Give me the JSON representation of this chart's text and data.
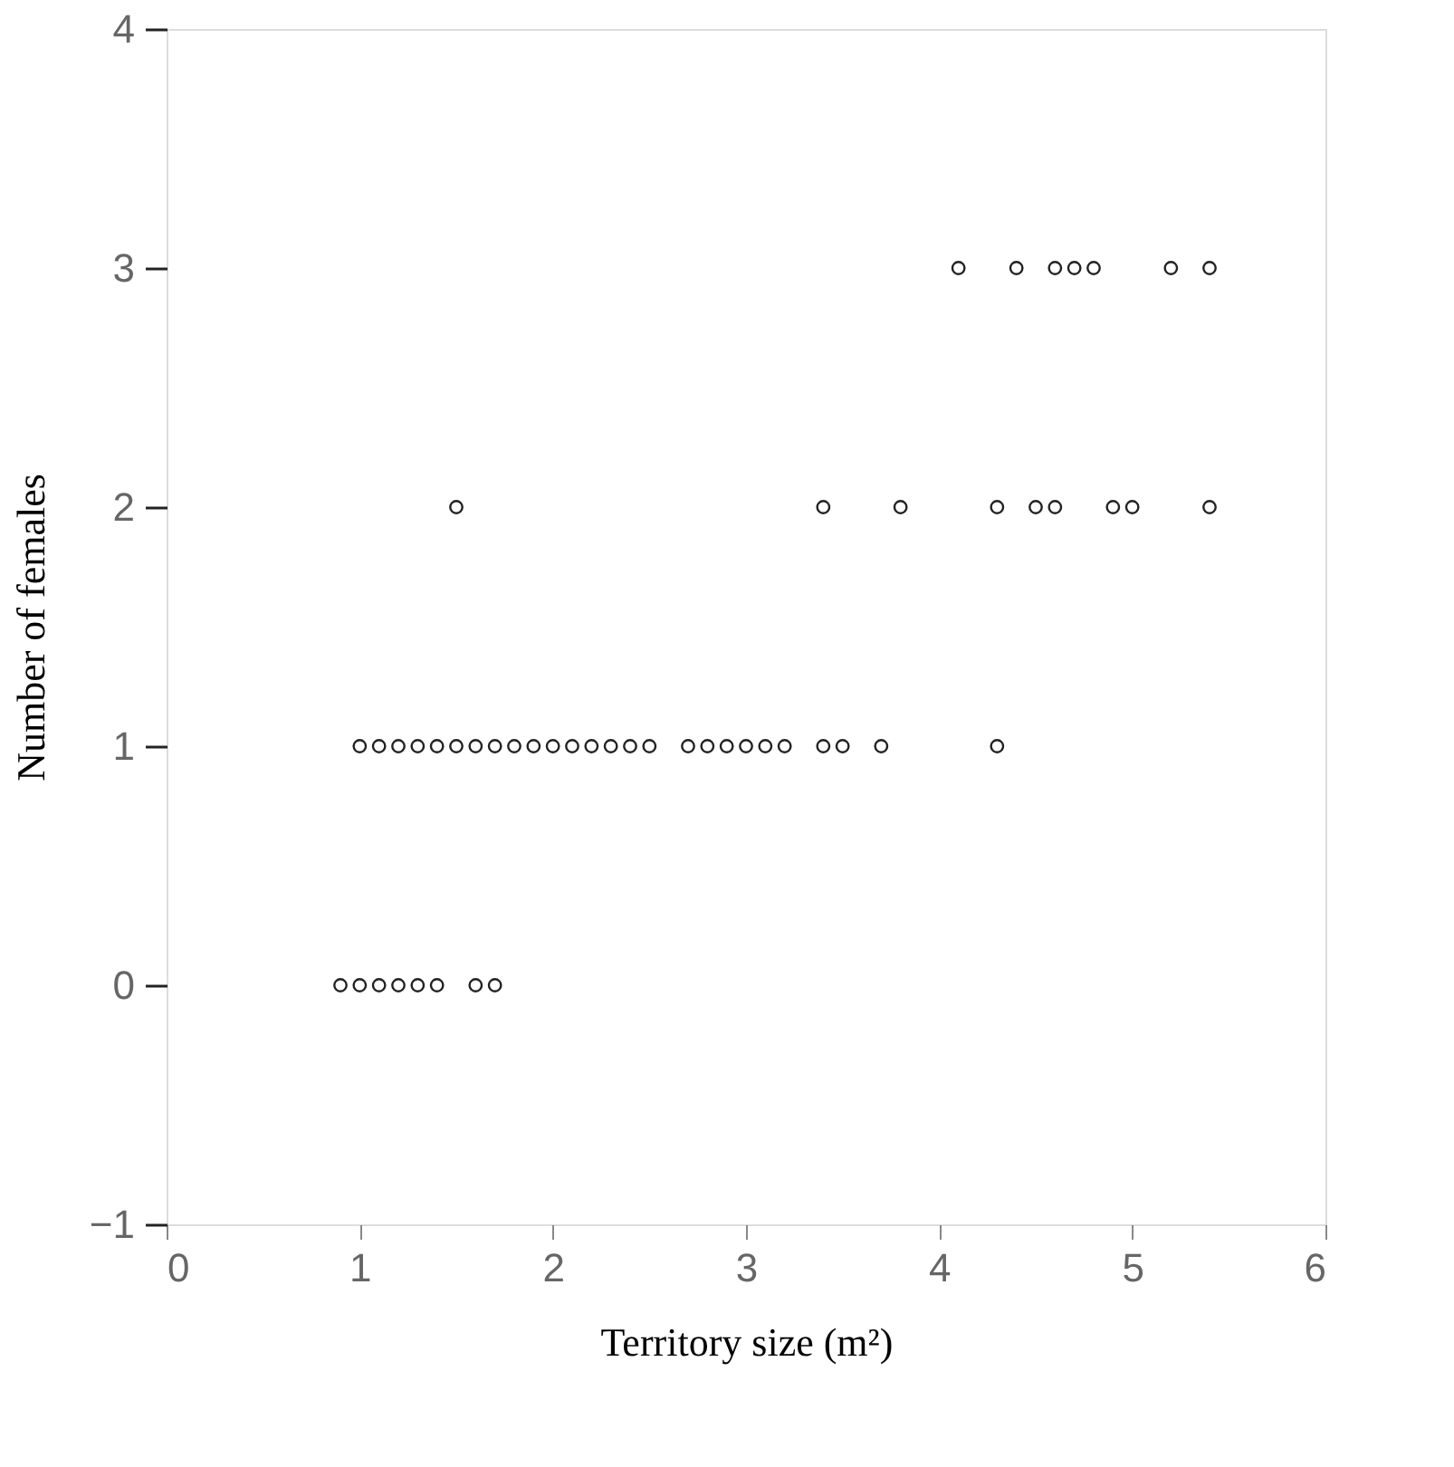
{
  "chart_data": {
    "type": "scatter",
    "xlabel": "Territory size (m²)",
    "ylabel": "Number of females",
    "series": [
      {
        "color": "#222222",
        "x": [
          0.9,
          1.0,
          1.1,
          1.2,
          1.3,
          1.4,
          1.6,
          1.7,
          1.0,
          1.1,
          1.2,
          1.3,
          1.4,
          1.5,
          1.6,
          1.7,
          1.8,
          1.9,
          2.0,
          2.1,
          2.2,
          2.3,
          2.4,
          2.5,
          2.7,
          2.8,
          2.9,
          3.0,
          3.1,
          3.2,
          3.4,
          3.5,
          3.7,
          4.3,
          1.5,
          3.4,
          3.8,
          4.3,
          4.5,
          4.6,
          4.9,
          5.0,
          5.4,
          4.1,
          4.4,
          4.6,
          4.7,
          4.8,
          5.2,
          5.4
        ],
        "values": [
          0,
          0,
          0,
          0,
          0,
          0,
          0,
          0,
          1,
          1,
          1,
          1,
          1,
          1,
          1,
          1,
          1,
          1,
          1,
          1,
          1,
          1,
          1,
          1,
          1,
          1,
          1,
          1,
          1,
          1,
          1,
          1,
          1,
          1,
          2,
          2,
          2,
          2,
          2,
          2,
          2,
          2,
          2,
          3,
          3,
          3,
          3,
          3,
          3,
          3
        ]
      }
    ],
    "xlim": [
      0,
      6
    ],
    "xticks": [
      0,
      1,
      2,
      3,
      4,
      5,
      6
    ],
    "ylim": [
      -1,
      4
    ],
    "yticks": [
      -1,
      0,
      1,
      2,
      3,
      4
    ],
    "grid": false,
    "legend": false,
    "marker": "circle"
  }
}
